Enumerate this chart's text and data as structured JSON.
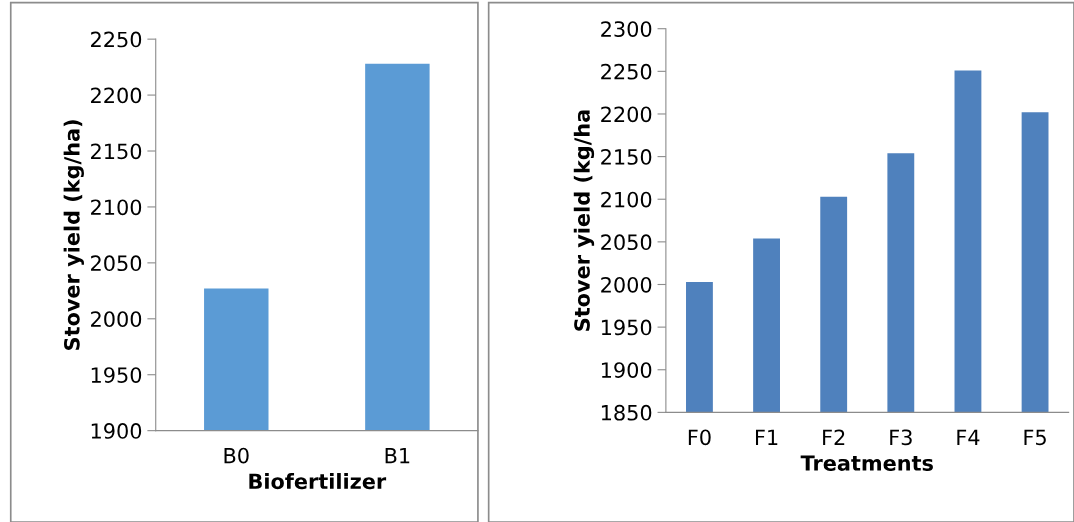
{
  "chart_data": [
    {
      "type": "bar",
      "xlabel": "Biofertilizer",
      "ylabel": "Stover yield (kg/ha)",
      "categories": [
        "B0",
        "B1"
      ],
      "values": [
        2027,
        2228
      ],
      "color": "#5b9bd5",
      "ylim": [
        1900,
        2250
      ],
      "yticks": [
        1900,
        1950,
        2000,
        2050,
        2100,
        2150,
        2200,
        2250
      ],
      "grid": false,
      "legend": false
    },
    {
      "type": "bar",
      "xlabel": "Treatments",
      "ylabel": "Stover yield (kg/ha",
      "categories": [
        "F0",
        "F1",
        "F2",
        "F3",
        "F4",
        "F5"
      ],
      "values": [
        2003,
        2054,
        2103,
        2154,
        2251,
        2202
      ],
      "color": "#4f81bd",
      "ylim": [
        1850,
        2300
      ],
      "yticks": [
        1850,
        1900,
        1950,
        2000,
        2050,
        2100,
        2150,
        2200,
        2250,
        2300
      ],
      "grid": false,
      "legend": false
    }
  ]
}
